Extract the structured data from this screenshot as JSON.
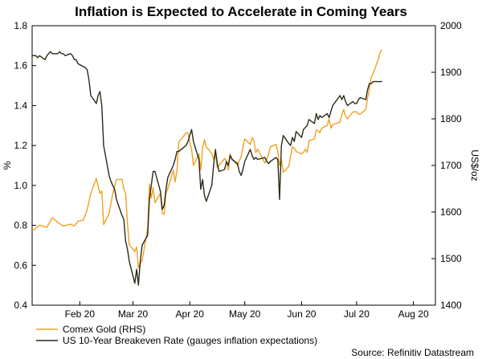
{
  "chart_data": {
    "type": "line",
    "title": "Inflation is Expected to Accelerate in Coming Years",
    "ylabel_left": "%",
    "ylabel_right": "US$/oz",
    "ylim_left": [
      0.4,
      1.8
    ],
    "ylim_right": [
      1400,
      2000
    ],
    "yticks_left": [
      "0.4",
      "0.6",
      "0.8",
      "1.0",
      "1.2",
      "1.4",
      "1.6",
      "1.8"
    ],
    "yticks_right": [
      "1400",
      "1500",
      "1600",
      "1700",
      "1800",
      "1900",
      "2000"
    ],
    "x_range": [
      "2020-01-20",
      "2020-08-27"
    ],
    "xticks": [
      {
        "label": "Feb 20",
        "date": "2020-02-15"
      },
      {
        "label": "Mar 20",
        "date": "2020-03-15"
      },
      {
        "label": "Apr 20",
        "date": "2020-04-15"
      },
      {
        "label": "May 20",
        "date": "2020-05-15"
      },
      {
        "label": "Jun 20",
        "date": "2020-06-15"
      },
      {
        "label": "Jul 20",
        "date": "2020-07-15"
      },
      {
        "label": "Aug 20",
        "date": "2020-08-15"
      }
    ],
    "colors": {
      "gold": "#f0a020",
      "breakeven": "#2b2b1a"
    },
    "series": [
      {
        "name": "Comex Gold (RHS)",
        "axis": "right",
        "color": "#f0a020",
        "points": [
          [
            "2020-01-20",
            1560
          ],
          [
            "2020-01-22",
            1565
          ],
          [
            "2020-01-24",
            1572
          ],
          [
            "2020-01-28",
            1567
          ],
          [
            "2020-01-31",
            1588
          ],
          [
            "2020-02-03",
            1578
          ],
          [
            "2020-02-06",
            1570
          ],
          [
            "2020-02-10",
            1574
          ],
          [
            "2020-02-12",
            1570
          ],
          [
            "2020-02-14",
            1580
          ],
          [
            "2020-02-17",
            1583
          ],
          [
            "2020-02-19",
            1605
          ],
          [
            "2020-02-21",
            1640
          ],
          [
            "2020-02-24",
            1672
          ],
          [
            "2020-02-26",
            1640
          ],
          [
            "2020-02-27",
            1645
          ],
          [
            "2020-02-28",
            1573
          ],
          [
            "2020-03-02",
            1597
          ],
          [
            "2020-03-04",
            1640
          ],
          [
            "2020-03-06",
            1670
          ],
          [
            "2020-03-09",
            1670
          ],
          [
            "2020-03-10",
            1650
          ],
          [
            "2020-03-11",
            1640
          ],
          [
            "2020-03-12",
            1575
          ],
          [
            "2020-03-13",
            1530
          ],
          [
            "2020-03-16",
            1515
          ],
          [
            "2020-03-17",
            1525
          ],
          [
            "2020-03-18",
            1480
          ],
          [
            "2020-03-19",
            1490
          ],
          [
            "2020-03-20",
            1495
          ],
          [
            "2020-03-23",
            1565
          ],
          [
            "2020-03-24",
            1660
          ],
          [
            "2020-03-25",
            1630
          ],
          [
            "2020-03-26",
            1652
          ],
          [
            "2020-03-27",
            1620
          ],
          [
            "2020-03-30",
            1640
          ],
          [
            "2020-03-31",
            1597
          ],
          [
            "2020-04-01",
            1595
          ],
          [
            "2020-04-02",
            1640
          ],
          [
            "2020-04-03",
            1650
          ],
          [
            "2020-04-06",
            1690
          ],
          [
            "2020-04-07",
            1665
          ],
          [
            "2020-04-08",
            1688
          ],
          [
            "2020-04-09",
            1750
          ],
          [
            "2020-04-13",
            1770
          ],
          [
            "2020-04-14",
            1770
          ],
          [
            "2020-04-15",
            1750
          ],
          [
            "2020-04-16",
            1735
          ],
          [
            "2020-04-17",
            1700
          ],
          [
            "2020-04-20",
            1725
          ],
          [
            "2020-04-21",
            1690
          ],
          [
            "2020-04-22",
            1738
          ],
          [
            "2020-04-23",
            1755
          ],
          [
            "2020-04-24",
            1740
          ],
          [
            "2020-04-27",
            1726
          ],
          [
            "2020-04-28",
            1713
          ],
          [
            "2020-04-29",
            1730
          ],
          [
            "2020-04-30",
            1695
          ],
          [
            "2020-05-01",
            1700
          ],
          [
            "2020-05-04",
            1715
          ],
          [
            "2020-05-05",
            1710
          ],
          [
            "2020-05-06",
            1690
          ],
          [
            "2020-05-07",
            1725
          ],
          [
            "2020-05-08",
            1715
          ],
          [
            "2020-05-11",
            1700
          ],
          [
            "2020-05-12",
            1710
          ],
          [
            "2020-05-13",
            1718
          ],
          [
            "2020-05-14",
            1740
          ],
          [
            "2020-05-15",
            1757
          ],
          [
            "2020-05-18",
            1745
          ],
          [
            "2020-05-19",
            1760
          ],
          [
            "2020-05-20",
            1753
          ],
          [
            "2020-05-21",
            1727
          ],
          [
            "2020-05-22",
            1735
          ],
          [
            "2020-05-26",
            1705
          ],
          [
            "2020-05-27",
            1713
          ],
          [
            "2020-05-28",
            1725
          ],
          [
            "2020-05-29",
            1740
          ],
          [
            "2020-06-01",
            1745
          ],
          [
            "2020-06-02",
            1730
          ],
          [
            "2020-06-03",
            1700
          ],
          [
            "2020-06-04",
            1713
          ],
          [
            "2020-06-05",
            1685
          ],
          [
            "2020-06-08",
            1698
          ],
          [
            "2020-06-09",
            1720
          ],
          [
            "2020-06-10",
            1740
          ],
          [
            "2020-06-11",
            1737
          ],
          [
            "2020-06-12",
            1730
          ],
          [
            "2020-06-15",
            1725
          ],
          [
            "2020-06-16",
            1728
          ],
          [
            "2020-06-17",
            1735
          ],
          [
            "2020-06-18",
            1728
          ],
          [
            "2020-06-19",
            1753
          ],
          [
            "2020-06-22",
            1757
          ],
          [
            "2020-06-23",
            1776
          ],
          [
            "2020-06-24",
            1775
          ],
          [
            "2020-06-25",
            1770
          ],
          [
            "2020-06-26",
            1780
          ],
          [
            "2020-06-29",
            1786
          ],
          [
            "2020-06-30",
            1800
          ],
          [
            "2020-07-01",
            1780
          ],
          [
            "2020-07-02",
            1788
          ],
          [
            "2020-07-06",
            1793
          ],
          [
            "2020-07-07",
            1810
          ],
          [
            "2020-07-08",
            1820
          ],
          [
            "2020-07-09",
            1805
          ],
          [
            "2020-07-10",
            1800
          ],
          [
            "2020-07-13",
            1815
          ],
          [
            "2020-07-14",
            1815
          ],
          [
            "2020-07-15",
            1815
          ],
          [
            "2020-07-16",
            1810
          ],
          [
            "2020-07-17",
            1810
          ],
          [
            "2020-07-20",
            1820
          ],
          [
            "2020-07-21",
            1845
          ],
          [
            "2020-07-22",
            1865
          ],
          [
            "2020-07-23",
            1890
          ],
          [
            "2020-07-24",
            1897
          ],
          [
            "2020-07-27",
            1930
          ],
          [
            "2020-07-28",
            1945
          ],
          [
            "2020-07-29",
            1948
          ]
        ]
      },
      {
        "name": "US 10-Year Breakeven Rate (gauges inflation expectations)",
        "axis": "left",
        "color": "#2b2b1a",
        "points": [
          [
            "2020-01-20",
            1.65
          ],
          [
            "2020-01-22",
            1.65
          ],
          [
            "2020-01-23",
            1.64
          ],
          [
            "2020-01-24",
            1.65
          ],
          [
            "2020-01-27",
            1.63
          ],
          [
            "2020-01-28",
            1.65
          ],
          [
            "2020-01-29",
            1.66
          ],
          [
            "2020-01-30",
            1.67
          ],
          [
            "2020-01-31",
            1.66
          ],
          [
            "2020-02-03",
            1.66
          ],
          [
            "2020-02-04",
            1.67
          ],
          [
            "2020-02-05",
            1.66
          ],
          [
            "2020-02-06",
            1.66
          ],
          [
            "2020-02-07",
            1.65
          ],
          [
            "2020-02-10",
            1.66
          ],
          [
            "2020-02-11",
            1.65
          ],
          [
            "2020-02-12",
            1.63
          ],
          [
            "2020-02-13",
            1.63
          ],
          [
            "2020-02-14",
            1.61
          ],
          [
            "2020-02-18",
            1.59
          ],
          [
            "2020-02-19",
            1.58
          ],
          [
            "2020-02-20",
            1.53
          ],
          [
            "2020-02-21",
            1.45
          ],
          [
            "2020-02-24",
            1.41
          ],
          [
            "2020-02-25",
            1.45
          ],
          [
            "2020-02-26",
            1.47
          ],
          [
            "2020-02-27",
            1.4
          ],
          [
            "2020-02-28",
            1.2
          ],
          [
            "2020-03-02",
            1.05
          ],
          [
            "2020-03-03",
            1.02
          ],
          [
            "2020-03-04",
            1.0
          ],
          [
            "2020-03-05",
            0.98
          ],
          [
            "2020-03-06",
            0.93
          ],
          [
            "2020-03-09",
            0.85
          ],
          [
            "2020-03-10",
            0.83
          ],
          [
            "2020-03-11",
            0.72
          ],
          [
            "2020-03-12",
            0.68
          ],
          [
            "2020-03-13",
            0.62
          ],
          [
            "2020-03-16",
            0.51
          ],
          [
            "2020-03-17",
            0.58
          ],
          [
            "2020-03-18",
            0.5
          ],
          [
            "2020-03-19",
            0.62
          ],
          [
            "2020-03-20",
            0.7
          ],
          [
            "2020-03-23",
            0.75
          ],
          [
            "2020-03-24",
            0.93
          ],
          [
            "2020-03-25",
            1.0
          ],
          [
            "2020-03-26",
            1.07
          ],
          [
            "2020-03-27",
            1.07
          ],
          [
            "2020-03-30",
            0.97
          ],
          [
            "2020-03-31",
            0.88
          ],
          [
            "2020-04-01",
            0.9
          ],
          [
            "2020-04-02",
            0.98
          ],
          [
            "2020-04-03",
            1.04
          ],
          [
            "2020-04-06",
            1.1
          ],
          [
            "2020-04-07",
            1.13
          ],
          [
            "2020-04-08",
            1.17
          ],
          [
            "2020-04-09",
            1.17
          ],
          [
            "2020-04-13",
            1.2
          ],
          [
            "2020-04-14",
            1.22
          ],
          [
            "2020-04-15",
            1.25
          ],
          [
            "2020-04-16",
            1.28
          ],
          [
            "2020-04-17",
            1.22
          ],
          [
            "2020-04-20",
            1.13
          ],
          [
            "2020-04-21",
            0.98
          ],
          [
            "2020-04-22",
            1.03
          ],
          [
            "2020-04-23",
            0.95
          ],
          [
            "2020-04-24",
            0.92
          ],
          [
            "2020-04-27",
            1.0
          ],
          [
            "2020-04-28",
            1.1
          ],
          [
            "2020-04-29",
            1.18
          ],
          [
            "2020-04-30",
            1.11
          ],
          [
            "2020-05-01",
            1.07
          ],
          [
            "2020-05-04",
            1.08
          ],
          [
            "2020-05-05",
            1.12
          ],
          [
            "2020-05-06",
            1.1
          ],
          [
            "2020-05-07",
            1.15
          ],
          [
            "2020-05-08",
            1.13
          ],
          [
            "2020-05-11",
            1.11
          ],
          [
            "2020-05-12",
            1.07
          ],
          [
            "2020-05-13",
            1.05
          ],
          [
            "2020-05-14",
            1.08
          ],
          [
            "2020-05-15",
            1.12
          ],
          [
            "2020-05-18",
            1.18
          ],
          [
            "2020-05-19",
            1.15
          ],
          [
            "2020-05-20",
            1.13
          ],
          [
            "2020-05-21",
            1.14
          ],
          [
            "2020-05-22",
            1.13
          ],
          [
            "2020-05-26",
            1.14
          ],
          [
            "2020-05-27",
            1.12
          ],
          [
            "2020-05-28",
            1.11
          ],
          [
            "2020-05-29",
            1.12
          ],
          [
            "2020-06-01",
            1.14
          ],
          [
            "2020-06-02",
            1.13
          ],
          [
            "2020-06-03",
            0.93
          ],
          [
            "2020-06-04",
            1.2
          ],
          [
            "2020-06-05",
            1.25
          ],
          [
            "2020-06-08",
            1.21
          ],
          [
            "2020-06-09",
            1.2
          ],
          [
            "2020-06-10",
            1.24
          ],
          [
            "2020-06-11",
            1.22
          ],
          [
            "2020-06-12",
            1.27
          ],
          [
            "2020-06-15",
            1.24
          ],
          [
            "2020-06-16",
            1.28
          ],
          [
            "2020-06-17",
            1.29
          ],
          [
            "2020-06-18",
            1.3
          ],
          [
            "2020-06-19",
            1.33
          ],
          [
            "2020-06-22",
            1.31
          ],
          [
            "2020-06-23",
            1.36
          ],
          [
            "2020-06-24",
            1.33
          ],
          [
            "2020-06-25",
            1.35
          ],
          [
            "2020-06-26",
            1.34
          ],
          [
            "2020-06-29",
            1.36
          ],
          [
            "2020-06-30",
            1.34
          ],
          [
            "2020-07-01",
            1.37
          ],
          [
            "2020-07-02",
            1.4
          ],
          [
            "2020-07-06",
            1.45
          ],
          [
            "2020-07-07",
            1.43
          ],
          [
            "2020-07-08",
            1.45
          ],
          [
            "2020-07-09",
            1.42
          ],
          [
            "2020-07-10",
            1.4
          ],
          [
            "2020-07-13",
            1.42
          ],
          [
            "2020-07-14",
            1.41
          ],
          [
            "2020-07-15",
            1.41
          ],
          [
            "2020-07-16",
            1.43
          ],
          [
            "2020-07-17",
            1.44
          ],
          [
            "2020-07-20",
            1.43
          ],
          [
            "2020-07-21",
            1.48
          ],
          [
            "2020-07-22",
            1.51
          ],
          [
            "2020-07-23",
            1.51
          ],
          [
            "2020-07-24",
            1.52
          ],
          [
            "2020-07-27",
            1.52
          ],
          [
            "2020-07-28",
            1.52
          ],
          [
            "2020-07-29",
            1.52
          ]
        ]
      }
    ],
    "legend_position": "bottom-left",
    "grid": false,
    "source": "Source: Refinitiv Datastream"
  }
}
